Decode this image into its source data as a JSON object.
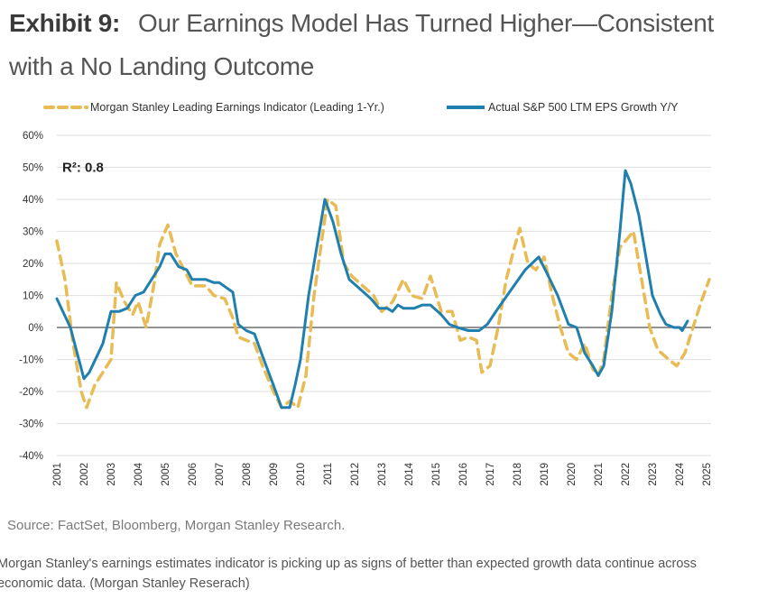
{
  "exhibit": {
    "label": "Exhibit 9:",
    "title": "Our Earnings Model Has Turned Higher—Consistent with a No Landing Outcome"
  },
  "source": "Source: FactSet, Bloomberg, Morgan Stanley Research.",
  "caption": "Morgan Stanley's earnings estimates indicator is picking up as signs of better than expected growth data continue across economic data. (Morgan Stanley Reserach)",
  "colors": {
    "indicator": "#E8BB55",
    "actual": "#1F7FAE",
    "grid": "#E3E3E3",
    "zero": "#6E6E6E",
    "text": "#333333"
  },
  "chart_data": {
    "type": "line",
    "title": "Our Earnings Model Has Turned Higher—Consistent with a No Landing Outcome",
    "xlabel": "",
    "ylabel": "",
    "ylim": [
      -40,
      60
    ],
    "xlim": [
      2001,
      2025
    ],
    "yticks": [
      60,
      50,
      40,
      30,
      20,
      10,
      0,
      -10,
      -20,
      -30,
      -40
    ],
    "ytick_labels": [
      "60%",
      "50%",
      "40%",
      "30%",
      "20%",
      "10%",
      "0%",
      "-10%",
      "-20%",
      "-30%",
      "-40%"
    ],
    "xtick_labels": [
      "2001",
      "2002",
      "2003",
      "2004",
      "2005",
      "2006",
      "2007",
      "2008",
      "2009",
      "2010",
      "2011",
      "2012",
      "2013",
      "2014",
      "2015",
      "2016",
      "2017",
      "2018",
      "2019",
      "2020",
      "2021",
      "2022",
      "2023",
      "2024",
      "2025"
    ],
    "grid": true,
    "legend_position": "top",
    "annotations": [
      {
        "text": "R²: 0.8",
        "x": 2001.2,
        "y": 50
      }
    ],
    "series": [
      {
        "name": "Morgan Stanley Leading Earnings Indicator (Leading 1-Yr.)",
        "style": "dashed",
        "x": [
          2001.0,
          2001.3,
          2001.6,
          2001.9,
          2002.1,
          2002.4,
          2002.7,
          2003.0,
          2003.2,
          2003.5,
          2003.8,
          2004.0,
          2004.3,
          2004.6,
          2004.8,
          2005.1,
          2005.4,
          2005.7,
          2006.0,
          2006.5,
          2006.8,
          2007.2,
          2007.5,
          2007.7,
          2008.0,
          2008.3,
          2008.6,
          2009.0,
          2009.3,
          2009.6,
          2009.9,
          2010.2,
          2010.5,
          2010.8,
          2011.0,
          2011.3,
          2011.6,
          2011.9,
          2012.3,
          2012.7,
          2013.0,
          2013.4,
          2013.8,
          2014.1,
          2014.5,
          2014.8,
          2015.2,
          2015.6,
          2015.9,
          2016.2,
          2016.5,
          2016.7,
          2017.0,
          2017.3,
          2017.6,
          2017.9,
          2018.1,
          2018.4,
          2018.7,
          2019.0,
          2019.3,
          2019.6,
          2019.9,
          2020.2,
          2020.5,
          2020.8,
          2021.0,
          2021.2,
          2021.5,
          2021.8,
          2022.1,
          2022.3,
          2022.6,
          2022.9,
          2023.2,
          2023.6,
          2023.9,
          2024.2,
          2024.5,
          2024.8,
          2025.1
        ],
        "values": [
          27,
          15,
          -5,
          -20,
          -25,
          -18,
          -14,
          -10,
          14,
          8,
          4,
          8,
          0,
          14,
          26,
          32,
          23,
          18,
          13,
          13,
          10,
          9,
          3,
          -3,
          -4,
          -5,
          -12,
          -20,
          -25,
          -23,
          -25,
          -15,
          10,
          28,
          40,
          38,
          20,
          16,
          13,
          10,
          5,
          8,
          15,
          10,
          9,
          16,
          5,
          5,
          -4,
          -3,
          -4,
          -14,
          -12,
          0,
          15,
          25,
          31,
          20,
          18,
          22,
          10,
          0,
          -8,
          -10,
          -5,
          -13,
          -15,
          -10,
          10,
          25,
          28,
          30,
          15,
          0,
          -7,
          -10,
          -12,
          -8,
          0,
          8,
          15
        ]
      },
      {
        "name": "Actual S&P 500 LTM EPS Growth Y/Y",
        "style": "solid",
        "x": [
          2001.0,
          2001.5,
          2002.0,
          2002.2,
          2002.7,
          2003.0,
          2003.3,
          2003.6,
          2003.9,
          2004.2,
          2004.5,
          2004.8,
          2005.0,
          2005.2,
          2005.5,
          2005.8,
          2006.0,
          2006.5,
          2006.8,
          2007.0,
          2007.5,
          2007.7,
          2008.0,
          2008.3,
          2008.6,
          2009.0,
          2009.3,
          2009.6,
          2009.8,
          2010.0,
          2010.3,
          2010.6,
          2010.9,
          2011.2,
          2011.5,
          2011.8,
          2012.2,
          2012.6,
          2012.9,
          2013.2,
          2013.4,
          2013.6,
          2013.8,
          2014.2,
          2014.5,
          2014.8,
          2015.2,
          2015.5,
          2015.8,
          2016.2,
          2016.6,
          2016.9,
          2017.3,
          2017.8,
          2018.3,
          2018.8,
          2019.1,
          2019.5,
          2019.9,
          2020.2,
          2020.5,
          2020.8,
          2021.0,
          2021.2,
          2021.5,
          2021.8,
          2022.0,
          2022.2,
          2022.5,
          2022.8,
          2023.0,
          2023.3,
          2023.5,
          2023.8,
          2024.0,
          2024.1,
          2024.3
        ],
        "values": [
          9,
          0,
          -16,
          -14,
          -5,
          5,
          5,
          6,
          10,
          11,
          15,
          19,
          23,
          23,
          19,
          18,
          15,
          15,
          14,
          14,
          11,
          1,
          -1,
          -2,
          -9,
          -18,
          -25,
          -25,
          -18,
          -10,
          10,
          25,
          40,
          33,
          23,
          15,
          12,
          9,
          6,
          6,
          5,
          7,
          6,
          6,
          7,
          7,
          4,
          1,
          0,
          -1,
          -1,
          1,
          6,
          12,
          18,
          22,
          17,
          10,
          1,
          0,
          -8,
          -12,
          -15,
          -12,
          5,
          30,
          49,
          45,
          35,
          20,
          10,
          4,
          1,
          0,
          0,
          -1,
          2
        ]
      }
    ]
  }
}
